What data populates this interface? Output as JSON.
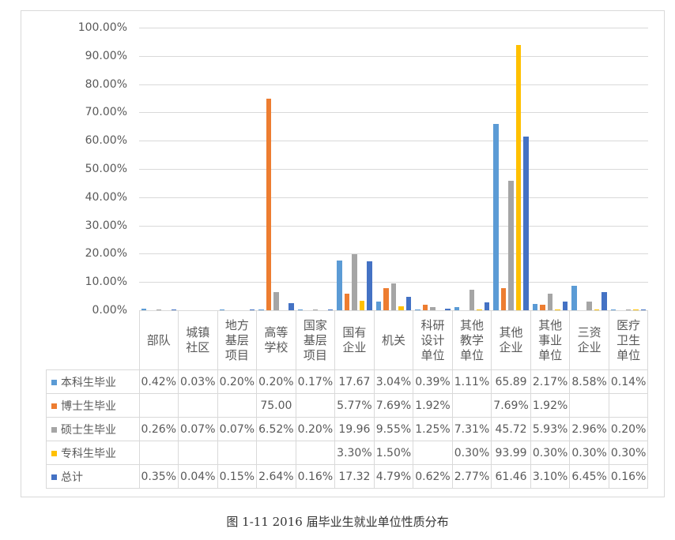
{
  "chart_data": {
    "type": "bar",
    "title": "",
    "xlabel": "",
    "ylabel": "",
    "ylim": [
      0,
      100
    ],
    "yticks": [
      "0.00%",
      "10.00%",
      "20.00%",
      "30.00%",
      "40.00%",
      "50.00%",
      "60.00%",
      "70.00%",
      "80.00%",
      "90.00%",
      "100.00%"
    ],
    "grid": true,
    "legend_position": "data-table",
    "categories": [
      "部队",
      "城镇社区",
      "地方基层项目",
      "高等学校",
      "国家基层项目",
      "国有企业",
      "机关",
      "科研设计单位",
      "其他教学单位",
      "其他企业",
      "其他事业单位",
      "三资企业",
      "医疗卫生单位"
    ],
    "category_lines": [
      [
        "部队"
      ],
      [
        "城镇",
        "社区"
      ],
      [
        "地方",
        "基层",
        "项目"
      ],
      [
        "高等",
        "学校"
      ],
      [
        "国家",
        "基层",
        "项目"
      ],
      [
        "国有",
        "企业"
      ],
      [
        "机关"
      ],
      [
        "科研",
        "设计",
        "单位"
      ],
      [
        "其他",
        "教学",
        "单位"
      ],
      [
        "其他",
        "企业"
      ],
      [
        "其他",
        "事业",
        "单位"
      ],
      [
        "三资",
        "企业"
      ],
      [
        "医疗",
        "卫生",
        "单位"
      ]
    ],
    "series": [
      {
        "name": "本科生毕业",
        "color": "#5b9bd5",
        "values": [
          0.42,
          0.03,
          0.2,
          0.2,
          0.17,
          17.67,
          3.04,
          0.39,
          1.11,
          65.89,
          2.17,
          8.58,
          0.14
        ],
        "labels": [
          "0.42%",
          "0.03%",
          "0.20%",
          "0.20%",
          "0.17%",
          "17.67",
          "3.04%",
          "0.39%",
          "1.11%",
          "65.89",
          "2.17%",
          "8.58%",
          "0.14%"
        ]
      },
      {
        "name": "博士生毕业",
        "color": "#ed7d31",
        "values": [
          null,
          null,
          null,
          75.0,
          null,
          5.77,
          7.69,
          1.92,
          null,
          7.69,
          1.92,
          null,
          null
        ],
        "labels": [
          "",
          "",
          "",
          "75.00",
          "",
          "5.77%",
          "7.69%",
          "1.92%",
          "",
          "7.69%",
          "1.92%",
          "",
          ""
        ]
      },
      {
        "name": "硕士生毕业",
        "color": "#a5a5a5",
        "values": [
          0.26,
          0.07,
          0.07,
          6.52,
          0.2,
          19.96,
          9.55,
          1.25,
          7.31,
          45.72,
          5.93,
          2.96,
          0.2
        ],
        "labels": [
          "0.26%",
          "0.07%",
          "0.07%",
          "6.52%",
          "0.20%",
          "19.96",
          "9.55%",
          "1.25%",
          "7.31%",
          "45.72",
          "5.93%",
          "2.96%",
          "0.20%"
        ]
      },
      {
        "name": "专科生毕业",
        "color": "#ffc000",
        "values": [
          null,
          null,
          null,
          null,
          null,
          3.3,
          1.5,
          null,
          0.3,
          93.99,
          0.3,
          0.3,
          0.3
        ],
        "labels": [
          "",
          "",
          "",
          "",
          "",
          "3.30%",
          "1.50%",
          "",
          "0.30%",
          "93.99",
          "0.30%",
          "0.30%",
          "0.30%"
        ]
      },
      {
        "name": "总计",
        "color": "#4472c4",
        "values": [
          0.35,
          0.04,
          0.15,
          2.64,
          0.16,
          17.32,
          4.79,
          0.62,
          2.77,
          61.46,
          3.1,
          6.45,
          0.16
        ],
        "labels": [
          "0.35%",
          "0.04%",
          "0.15%",
          "2.64%",
          "0.16%",
          "17.32",
          "4.79%",
          "0.62%",
          "2.77%",
          "61.46",
          "3.10%",
          "6.45%",
          "0.16%"
        ]
      }
    ]
  },
  "caption": "图 1-11 2016 届毕业生就业单位性质分布"
}
